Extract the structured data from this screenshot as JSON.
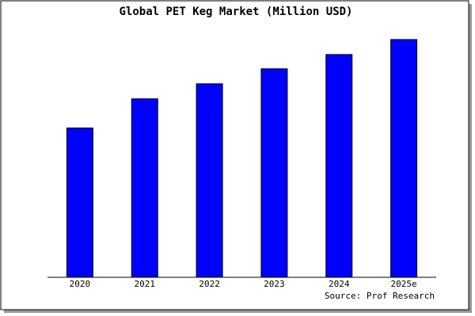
{
  "chart_data": {
    "type": "bar",
    "title": "Global PET Keg Market (Million USD)",
    "categories": [
      "2020",
      "2021",
      "2022",
      "2023",
      "2024",
      "2025e"
    ],
    "values": [
      189,
      226,
      245,
      264,
      282,
      301
    ],
    "color": "#0000ff",
    "ylim": [
      0,
      303
    ],
    "source": "Source: Prof Research"
  }
}
